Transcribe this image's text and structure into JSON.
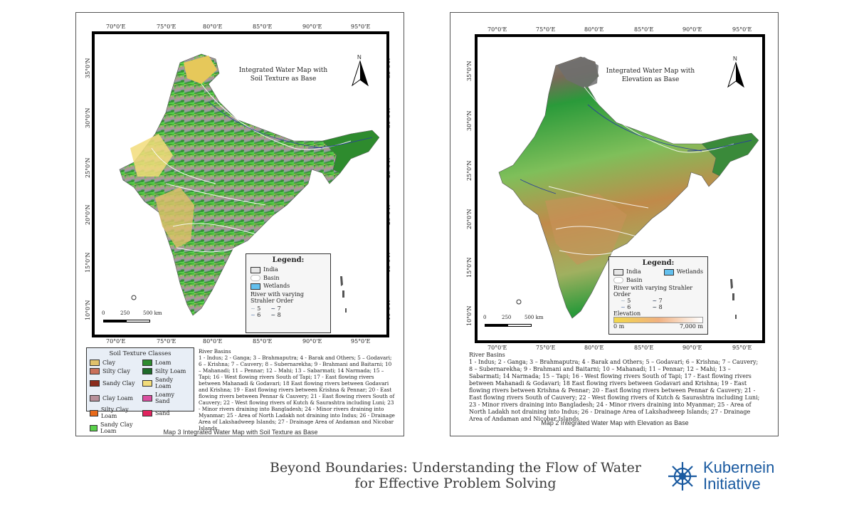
{
  "left_map": {
    "lon_ticks": [
      "70°0'E",
      "75°0'E",
      "80°0'E",
      "85°0'E",
      "90°0'E",
      "95°0'E"
    ],
    "lat_ticks": [
      "35°0'N",
      "30°0'N",
      "25°0'N",
      "20°0'N",
      "15°0'N",
      "10°0'N"
    ],
    "title_line1": "Integrated Water Map with",
    "title_line2": "Soil Texture as Base",
    "north": "N",
    "scale": {
      "s0": "0",
      "s1": "250",
      "s2": "500 km"
    },
    "legend": {
      "heading": "Legend:",
      "india": "India",
      "basin": "Basin",
      "wetlands": "Wetlands",
      "river_line1": "River with varying",
      "river_line2": "Strahler Order",
      "o5": "5",
      "o6": "6",
      "o7": "7",
      "o8": "8"
    },
    "soil": {
      "heading": "Soil Texture Classes",
      "classes": [
        {
          "name": "Clay",
          "color": "#e0c06a"
        },
        {
          "name": "Loam",
          "color": "#2e8b2e"
        },
        {
          "name": "Silty Clay",
          "color": "#c9705a"
        },
        {
          "name": "Silty Loam",
          "color": "#1f6b2a"
        },
        {
          "name": "Sandy Clay",
          "color": "#8b2d1e"
        },
        {
          "name": "Sandy Loam",
          "color": "#f2dc7a"
        },
        {
          "name": "Clay Loam",
          "color": "#b7909a"
        },
        {
          "name": "Loamy Sand",
          "color": "#d94fa0"
        },
        {
          "name": "Silty Clay Loam",
          "color": "#e86a1a"
        },
        {
          "name": "Sand",
          "color": "#e0245e"
        },
        {
          "name": "Sandy Clay Loam",
          "color": "#59d14a"
        }
      ]
    },
    "basins_heading": "River Basins",
    "basins_text": "1 - Indus;  2 - Ganga; 3 – Brahmaputra; 4 - Barak and Others; 5 – Godavari; 6 – Krishna; 7 – Cauvery; 8 – Subernarekha; 9 - Brahmani and Baitarni; 10 – Mahanadi; 11 – Pennar; 12 – Mahi; 13 – Sabarmati; 14 Narmada; 15 – Tapi; 16 - West flowing rivers South of Tapi; 17 - East flowing rivers between Mahanadi & Godavari; 18 East flowing rivers between Godavari and Krishna; 19 - East flowing rivers between Krishna & Pennar; 20 - East flowing rivers between Pennar & Cauvery; 21 - East flowing rivers South of Cauvery; 22 - West flowing rivers of Kutch & Saurashtra including Luni; 23 - Minor rivers draining into Bangladesh; 24 - Minor rivers draining into Myanmar; 25 - Area of North Ladakh not draining into Indus; 26 - Drainage Area of Lakshadweep Islands; 27 - Drainage Area of Andaman and Nicobar Islands.",
    "caption": "Map 3 Integrated Water Map with Soil Texture as Base"
  },
  "right_map": {
    "lon_ticks": [
      "70°0'E",
      "75°0'E",
      "80°0'E",
      "85°0'E",
      "90°0'E",
      "95°0'E"
    ],
    "lat_ticks": [
      "35°0'N",
      "30°0'N",
      "25°0'N",
      "20°0'N",
      "15°0'N",
      "10°0'N"
    ],
    "title_line1": "Integrated Water Map with",
    "title_line2": "Elevation as Base",
    "north": "N",
    "scale": {
      "s0": "0",
      "s1": "250",
      "s2": "500 km"
    },
    "legend": {
      "heading": "Legend:",
      "india": "India",
      "wetlands": "Wetlands",
      "basin": "Basin",
      "river": "River with varying Strahler Order",
      "o5": "5",
      "o6": "6",
      "o7": "7",
      "o8": "8",
      "elevation": "Elevation",
      "elev_min": "0 m",
      "elev_max": "7,000 m"
    },
    "basins_heading": "River Basins",
    "basins_text": "1 - Indus;  2 - Ganga; 3 – Brahmaputra; 4 - Barak and Others; 5 – Godavari; 6 – Krishna; 7 – Cauvery; 8 – Subernarekha; 9 - Brahmani and Baitarni; 10 – Mahanadi; 11 – Pennar; 12 – Mahi; 13 – Sabarmati; 14 Narmada; 15 – Tapi; 16 - West flowing rivers South of Tapi; 17 - East flowing rivers between Mahanadi & Godavari; 18 East flowing rivers between Godavari and Krishna; 19 - East flowing rivers between Krishna & Pennar; 20 - East flowing rivers between Pennar & Cauvery; 21 - East flowing rivers South of Cauvery; 22 - West flowing rivers of Kutch & Saurashtra including Luni; 23 - Minor rivers draining into Bangladesh; 24 - Minor rivers draining into Myanmar; 25 - Area of North Ladakh not draining into Indus; 26 - Drainage Area of Lakshadweep Islands; 27 - Drainage Area of Andaman and Nicobar Islands.",
    "caption": "Map 2 Integrated Water Map with Elevation as Base"
  },
  "headline_line1": "Beyond Boundaries: Understanding the Flow of Water",
  "headline_line2": "for Effective Problem Solving",
  "brand_line1": "Kubernein",
  "brand_line2": "Initiative"
}
